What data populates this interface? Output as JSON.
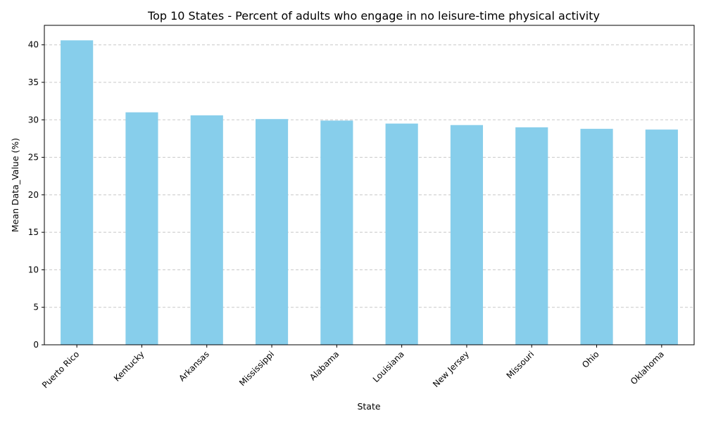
{
  "chart_data": {
    "type": "bar",
    "title": "Top 10 States - Percent of adults who engage in no leisure-time physical activity",
    "xlabel": "State",
    "ylabel": "Mean Data_Value (%)",
    "categories": [
      "Puerto Rico",
      "Kentucky",
      "Arkansas",
      "Mississippi",
      "Alabama",
      "Louisiana",
      "New Jersey",
      "Missouri",
      "Ohio",
      "Oklahoma"
    ],
    "values": [
      40.6,
      31.0,
      30.6,
      30.1,
      29.9,
      29.5,
      29.3,
      29.0,
      28.8,
      28.7
    ],
    "ylim": [
      0,
      42.6
    ],
    "yticks": [
      "0",
      "5",
      "10",
      "15",
      "20",
      "25",
      "30",
      "35",
      "40"
    ],
    "grid": "y-axis, dashed",
    "legend": "none",
    "colors": {
      "bar": "#87ceeb",
      "grid": "#c8c8c8",
      "axis": "#000000"
    }
  }
}
